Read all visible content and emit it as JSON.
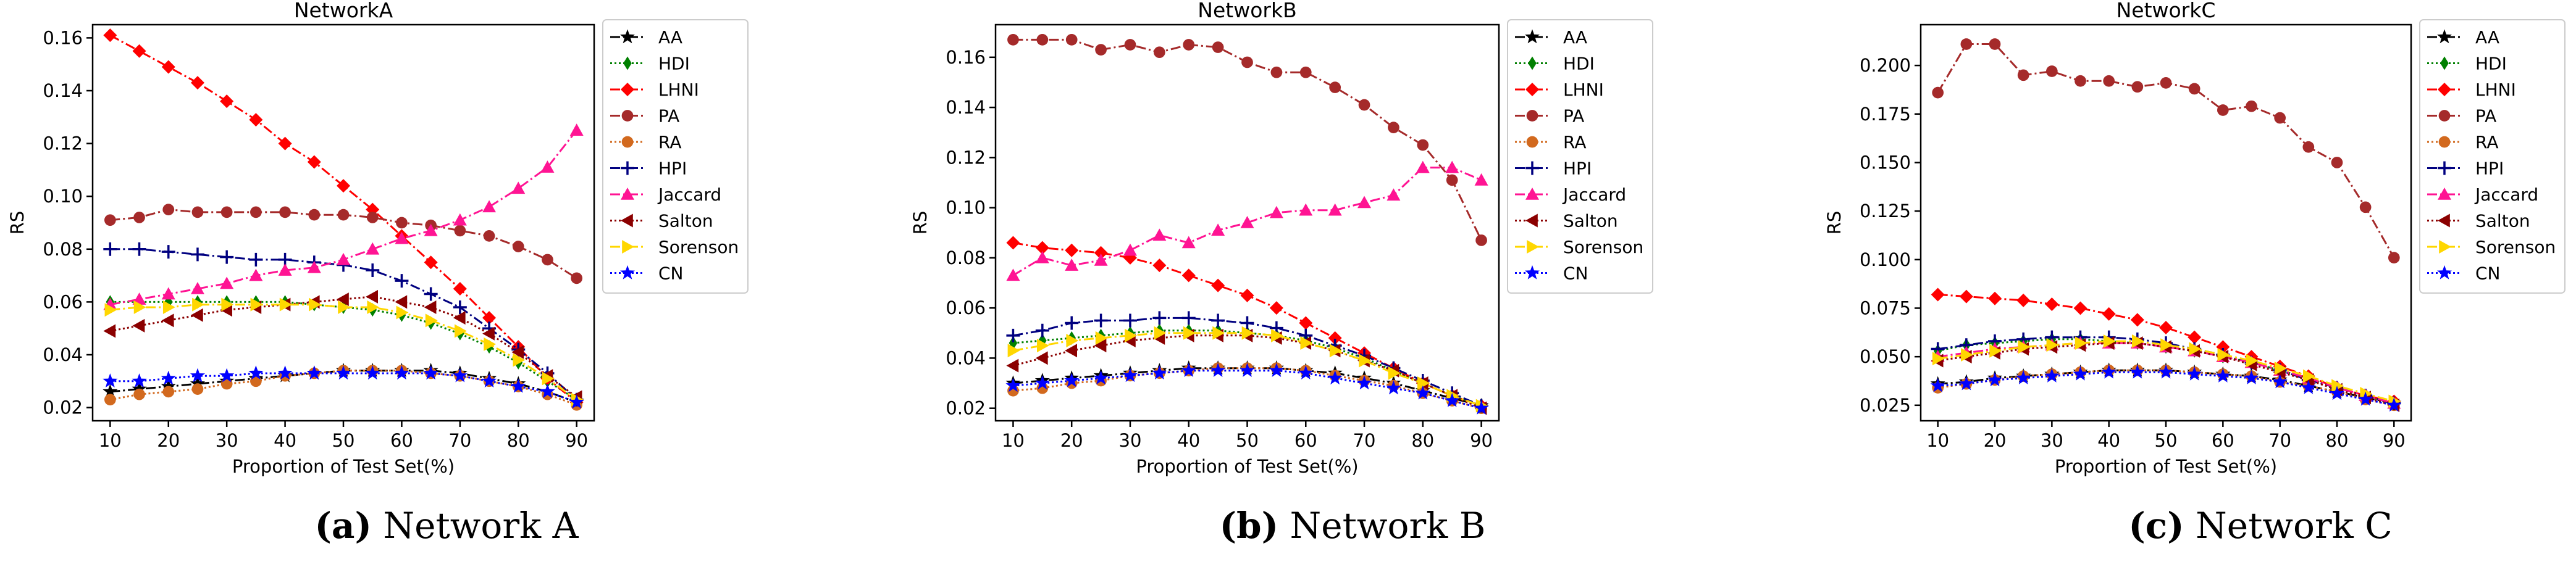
{
  "x_label": "Proportion of Test Set(%)",
  "y_label": "RS",
  "legend_labels": [
    "AA",
    "HDI",
    "LHNI",
    "PA",
    "RA",
    "HPI",
    "Jaccard",
    "Salton",
    "Sorenson",
    "CN"
  ],
  "series_styles": [
    {
      "color": "#000000",
      "marker": "star",
      "dash": "dashdot"
    },
    {
      "color": "#008000",
      "marker": "diamond_thin",
      "dash": "dotted"
    },
    {
      "color": "#ff0000",
      "marker": "diamond",
      "dash": "dashdot"
    },
    {
      "color": "#a52a2a",
      "marker": "circle",
      "dash": "dashdot"
    },
    {
      "color": "#d2691e",
      "marker": "circle",
      "dash": "dotted"
    },
    {
      "color": "#000080",
      "marker": "plus",
      "dash": "dashdot"
    },
    {
      "color": "#ff1493",
      "marker": "triangle_up",
      "dash": "dashdot"
    },
    {
      "color": "#8b0000",
      "marker": "triangle_left",
      "dash": "dotted"
    },
    {
      "color": "#ffd700",
      "marker": "triangle_right",
      "dash": "dashdot"
    },
    {
      "color": "#0000ff",
      "marker": "star",
      "dash": "dotted"
    }
  ],
  "captions": [
    {
      "tag": "(a)",
      "text": " Network A"
    },
    {
      "tag": "(b)",
      "text": " Network B"
    },
    {
      "tag": "(c)",
      "text": " Network C"
    }
  ],
  "chart_data": [
    {
      "type": "line",
      "title": "NetworkA",
      "xlabel": "Proportion of Test Set(%)",
      "ylabel": "RS",
      "xlim": [
        7,
        93
      ],
      "ylim": [
        0.015,
        0.165
      ],
      "xticks": [
        10,
        20,
        30,
        40,
        50,
        60,
        70,
        80,
        90
      ],
      "yticks": [
        0.02,
        0.04,
        0.06,
        0.08,
        0.1,
        0.12,
        0.14,
        0.16
      ],
      "ytick_labels": [
        "0.02",
        "0.04",
        "0.06",
        "0.08",
        "0.10",
        "0.12",
        "0.14",
        "0.16"
      ],
      "x": [
        10,
        15,
        20,
        25,
        30,
        35,
        40,
        45,
        50,
        55,
        60,
        65,
        70,
        75,
        80,
        85,
        90
      ],
      "series": [
        {
          "name": "AA",
          "values": [
            0.026,
            0.027,
            0.028,
            0.029,
            0.03,
            0.031,
            0.032,
            0.033,
            0.034,
            0.034,
            0.034,
            0.034,
            0.033,
            0.031,
            0.029,
            0.026,
            0.022
          ]
        },
        {
          "name": "HDI",
          "values": [
            0.06,
            0.06,
            0.06,
            0.06,
            0.06,
            0.06,
            0.06,
            0.059,
            0.058,
            0.057,
            0.055,
            0.052,
            0.048,
            0.043,
            0.037,
            0.03,
            0.023
          ]
        },
        {
          "name": "LHNI",
          "values": [
            0.161,
            0.155,
            0.149,
            0.143,
            0.136,
            0.129,
            0.12,
            0.113,
            0.104,
            0.095,
            0.085,
            0.075,
            0.065,
            0.054,
            0.043,
            0.031,
            0.022
          ]
        },
        {
          "name": "PA",
          "values": [
            0.091,
            0.092,
            0.095,
            0.094,
            0.094,
            0.094,
            0.094,
            0.093,
            0.093,
            0.092,
            0.09,
            0.089,
            0.087,
            0.085,
            0.081,
            0.076,
            0.069
          ]
        },
        {
          "name": "RA",
          "values": [
            0.023,
            0.025,
            0.026,
            0.027,
            0.029,
            0.03,
            0.032,
            0.033,
            0.034,
            0.034,
            0.034,
            0.033,
            0.032,
            0.03,
            0.028,
            0.025,
            0.021
          ]
        },
        {
          "name": "HPI",
          "values": [
            0.08,
            0.08,
            0.079,
            0.078,
            0.077,
            0.076,
            0.076,
            0.075,
            0.074,
            0.072,
            0.068,
            0.063,
            0.058,
            0.05,
            0.042,
            0.033,
            0.023
          ]
        },
        {
          "name": "Jaccard",
          "values": [
            0.059,
            0.061,
            0.063,
            0.065,
            0.067,
            0.07,
            0.072,
            0.073,
            0.076,
            0.08,
            0.084,
            0.087,
            0.091,
            0.096,
            0.103,
            0.111,
            0.125
          ]
        },
        {
          "name": "Salton",
          "values": [
            0.049,
            0.051,
            0.053,
            0.055,
            0.057,
            0.058,
            0.059,
            0.06,
            0.061,
            0.062,
            0.06,
            0.058,
            0.054,
            0.048,
            0.041,
            0.032,
            0.024
          ]
        },
        {
          "name": "Sorenson",
          "values": [
            0.057,
            0.058,
            0.058,
            0.059,
            0.059,
            0.059,
            0.059,
            0.059,
            0.058,
            0.058,
            0.056,
            0.053,
            0.049,
            0.044,
            0.038,
            0.031,
            0.023
          ]
        },
        {
          "name": "CN",
          "values": [
            0.03,
            0.03,
            0.031,
            0.032,
            0.032,
            0.033,
            0.033,
            0.033,
            0.033,
            0.033,
            0.033,
            0.033,
            0.032,
            0.03,
            0.028,
            0.026,
            0.022
          ]
        }
      ]
    },
    {
      "type": "line",
      "title": "NetworkB",
      "xlabel": "Proportion of Test Set(%)",
      "ylabel": "RS",
      "xlim": [
        7,
        93
      ],
      "ylim": [
        0.015,
        0.173
      ],
      "xticks": [
        10,
        20,
        30,
        40,
        50,
        60,
        70,
        80,
        90
      ],
      "yticks": [
        0.02,
        0.04,
        0.06,
        0.08,
        0.1,
        0.12,
        0.14,
        0.16
      ],
      "ytick_labels": [
        "0.02",
        "0.04",
        "0.06",
        "0.08",
        "0.10",
        "0.12",
        "0.14",
        "0.16"
      ],
      "x": [
        10,
        15,
        20,
        25,
        30,
        35,
        40,
        45,
        50,
        55,
        60,
        65,
        70,
        75,
        80,
        85,
        90
      ],
      "series": [
        {
          "name": "AA",
          "values": [
            0.03,
            0.031,
            0.032,
            0.033,
            0.034,
            0.035,
            0.036,
            0.036,
            0.036,
            0.036,
            0.035,
            0.034,
            0.032,
            0.03,
            0.027,
            0.024,
            0.021
          ]
        },
        {
          "name": "HDI",
          "values": [
            0.046,
            0.047,
            0.048,
            0.049,
            0.05,
            0.051,
            0.051,
            0.051,
            0.05,
            0.049,
            0.047,
            0.044,
            0.04,
            0.035,
            0.03,
            0.025,
            0.021
          ]
        },
        {
          "name": "LHNI",
          "values": [
            0.086,
            0.084,
            0.083,
            0.082,
            0.08,
            0.077,
            0.073,
            0.069,
            0.065,
            0.06,
            0.054,
            0.048,
            0.042,
            0.036,
            0.03,
            0.025,
            0.021
          ]
        },
        {
          "name": "PA",
          "values": [
            0.167,
            0.167,
            0.167,
            0.163,
            0.165,
            0.162,
            0.165,
            0.164,
            0.158,
            0.154,
            0.154,
            0.148,
            0.141,
            0.132,
            0.125,
            0.111,
            0.087
          ]
        },
        {
          "name": "RA",
          "values": [
            0.027,
            0.028,
            0.03,
            0.031,
            0.033,
            0.034,
            0.035,
            0.036,
            0.036,
            0.036,
            0.035,
            0.033,
            0.031,
            0.029,
            0.026,
            0.023,
            0.02
          ]
        },
        {
          "name": "HPI",
          "values": [
            0.049,
            0.051,
            0.054,
            0.055,
            0.055,
            0.056,
            0.056,
            0.055,
            0.054,
            0.052,
            0.049,
            0.045,
            0.041,
            0.036,
            0.031,
            0.026,
            0.021
          ]
        },
        {
          "name": "Jaccard",
          "values": [
            0.073,
            0.08,
            0.077,
            0.079,
            0.083,
            0.089,
            0.086,
            0.091,
            0.094,
            0.098,
            0.099,
            0.099,
            0.102,
            0.105,
            0.116,
            0.116,
            0.111
          ]
        },
        {
          "name": "Salton",
          "values": [
            0.037,
            0.04,
            0.043,
            0.045,
            0.047,
            0.048,
            0.049,
            0.049,
            0.049,
            0.048,
            0.046,
            0.043,
            0.039,
            0.035,
            0.03,
            0.025,
            0.02
          ]
        },
        {
          "name": "Sorenson",
          "values": [
            0.043,
            0.045,
            0.047,
            0.048,
            0.049,
            0.05,
            0.05,
            0.05,
            0.05,
            0.049,
            0.046,
            0.043,
            0.039,
            0.034,
            0.03,
            0.025,
            0.021
          ]
        },
        {
          "name": "CN",
          "values": [
            0.029,
            0.03,
            0.031,
            0.032,
            0.033,
            0.034,
            0.035,
            0.035,
            0.035,
            0.035,
            0.034,
            0.032,
            0.03,
            0.028,
            0.026,
            0.023,
            0.02
          ]
        }
      ]
    },
    {
      "type": "line",
      "title": "NetworkC",
      "xlabel": "Proportion of Test Set(%)",
      "ylabel": "RS",
      "xlim": [
        7,
        93
      ],
      "ylim": [
        0.017,
        0.221
      ],
      "xticks": [
        10,
        20,
        30,
        40,
        50,
        60,
        70,
        80,
        90
      ],
      "yticks": [
        0.025,
        0.05,
        0.075,
        0.1,
        0.125,
        0.15,
        0.175,
        0.2
      ],
      "ytick_labels": [
        "0.025",
        "0.050",
        "0.075",
        "0.100",
        "0.125",
        "0.150",
        "0.175",
        "0.200"
      ],
      "x": [
        10,
        15,
        20,
        25,
        30,
        35,
        40,
        45,
        50,
        55,
        60,
        65,
        70,
        75,
        80,
        85,
        90
      ],
      "series": [
        {
          "name": "AA",
          "values": [
            0.036,
            0.037,
            0.039,
            0.04,
            0.041,
            0.042,
            0.043,
            0.043,
            0.043,
            0.042,
            0.041,
            0.04,
            0.038,
            0.035,
            0.032,
            0.029,
            0.026
          ]
        },
        {
          "name": "HDI",
          "values": [
            0.053,
            0.056,
            0.057,
            0.058,
            0.059,
            0.059,
            0.058,
            0.057,
            0.055,
            0.053,
            0.05,
            0.047,
            0.043,
            0.039,
            0.034,
            0.03,
            0.026
          ]
        },
        {
          "name": "LHNI",
          "values": [
            0.082,
            0.081,
            0.08,
            0.079,
            0.077,
            0.075,
            0.072,
            0.069,
            0.065,
            0.06,
            0.055,
            0.05,
            0.045,
            0.04,
            0.034,
            0.03,
            0.027
          ]
        },
        {
          "name": "PA",
          "values": [
            0.186,
            0.211,
            0.211,
            0.195,
            0.197,
            0.192,
            0.192,
            0.189,
            0.191,
            0.188,
            0.177,
            0.179,
            0.173,
            0.158,
            0.15,
            0.127,
            0.101
          ]
        },
        {
          "name": "RA",
          "values": [
            0.034,
            0.036,
            0.038,
            0.04,
            0.041,
            0.042,
            0.043,
            0.043,
            0.043,
            0.042,
            0.041,
            0.04,
            0.037,
            0.035,
            0.032,
            0.028,
            0.025
          ]
        },
        {
          "name": "HPI",
          "values": [
            0.054,
            0.056,
            0.058,
            0.059,
            0.06,
            0.06,
            0.06,
            0.059,
            0.057,
            0.054,
            0.051,
            0.047,
            0.043,
            0.038,
            0.034,
            0.03,
            0.026
          ]
        },
        {
          "name": "Jaccard",
          "values": [
            0.05,
            0.052,
            0.054,
            0.055,
            0.056,
            0.057,
            0.057,
            0.057,
            0.055,
            0.053,
            0.05,
            0.047,
            0.043,
            0.039,
            0.034,
            0.03,
            0.026
          ]
        },
        {
          "name": "Salton",
          "values": [
            0.048,
            0.05,
            0.052,
            0.054,
            0.055,
            0.056,
            0.057,
            0.057,
            0.055,
            0.053,
            0.05,
            0.046,
            0.042,
            0.038,
            0.033,
            0.029,
            0.025
          ]
        },
        {
          "name": "Sorenson",
          "values": [
            0.049,
            0.051,
            0.053,
            0.055,
            0.056,
            0.057,
            0.058,
            0.058,
            0.056,
            0.054,
            0.051,
            0.048,
            0.044,
            0.04,
            0.035,
            0.031,
            0.027
          ]
        },
        {
          "name": "CN",
          "values": [
            0.035,
            0.036,
            0.038,
            0.039,
            0.04,
            0.041,
            0.042,
            0.042,
            0.042,
            0.041,
            0.04,
            0.039,
            0.037,
            0.034,
            0.031,
            0.028,
            0.025
          ]
        }
      ]
    }
  ]
}
